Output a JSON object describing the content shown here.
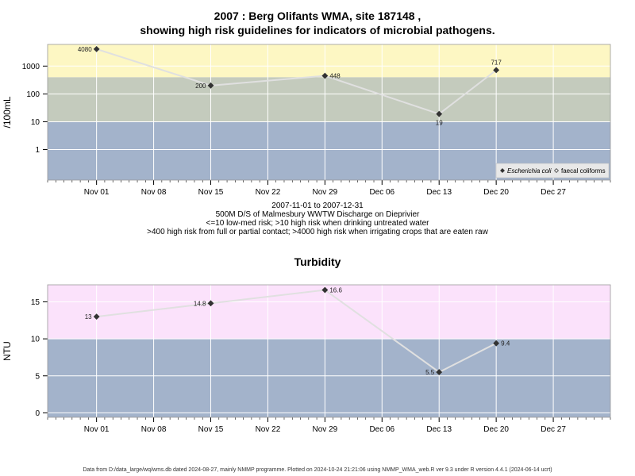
{
  "title_line1": "2007 : Berg Olifants WMA, site 187148 ,",
  "title_line2": "showing high risk guidelines for indicators of microbial pathogens.",
  "captions": {
    "line1": "2007-11-01 to 2007-12-31",
    "line2": "500M D/S of Malmesbury WWTW Discharge on Dieprivier",
    "line3": "<=10 low-med risk; >10 high risk when drinking untreated water",
    "line4": ">400 high risk from full or partial contact; >4000 high risk when irrigating crops that are eaten raw"
  },
  "turbidity_title": "Turbidity",
  "footer": "Data from D:/data_large/wq/wms.db dated 2024-08-27, mainly NMMP programme. Plotted on 2024-10-24 21:21:06 using NMMP_WMA_web.R ver 9.3 under R version 4.4.1 (2024-06-14 ucrt)",
  "colors": {
    "band_low": "#a3b3cb",
    "band_mid": "#c4cbbd",
    "band_high": "#fdf7c3",
    "band_turb_high": "#fbe2fb",
    "grid": "#ffffff",
    "line": "#e0e0e0",
    "marker": "#333333"
  },
  "chart_data": [
    {
      "type": "line",
      "title": "",
      "xlabel": "",
      "ylabel": "/100mL",
      "yscale": "log",
      "ylim": [
        0.08,
        6000
      ],
      "xlim": [
        "2007-10-26",
        "2008-01-03"
      ],
      "x_ticks": [
        "Nov 01",
        "Nov 08",
        "Nov 15",
        "Nov 22",
        "Nov 29",
        "Dec 06",
        "Dec 13",
        "Dec 20",
        "Dec 27"
      ],
      "x_tick_dates": [
        "2007-11-01",
        "2007-11-08",
        "2007-11-15",
        "2007-11-22",
        "2007-11-29",
        "2007-12-06",
        "2007-12-13",
        "2007-12-20",
        "2007-12-27"
      ],
      "y_ticks": [
        "1",
        "10",
        "100",
        "1000"
      ],
      "y_tick_values": [
        1,
        10,
        100,
        1000
      ],
      "grid": true,
      "bands": [
        {
          "from": 0.08,
          "to": 10,
          "color": "band_low"
        },
        {
          "from": 10,
          "to": 400,
          "color": "band_mid"
        },
        {
          "from": 400,
          "to": 6000,
          "color": "band_high"
        }
      ],
      "legend": {
        "position": "bottom-right",
        "entries": [
          "Escherichia coli",
          "faecal coliforms"
        ]
      },
      "series": [
        {
          "name": "Escherichia coli",
          "x": [
            "2007-11-01",
            "2007-11-15",
            "2007-11-29",
            "2007-12-13",
            "2007-12-20"
          ],
          "values": [
            4080,
            200,
            448,
            19,
            717
          ],
          "labels": [
            "4080",
            "200",
            "448",
            "19",
            "717"
          ],
          "label_pos": [
            "left",
            "left",
            "right",
            "below",
            "above"
          ]
        }
      ]
    },
    {
      "type": "line",
      "title": "Turbidity",
      "xlabel": "",
      "ylabel": "NTU",
      "yscale": "linear",
      "ylim": [
        -0.6,
        17.3
      ],
      "xlim": [
        "2007-10-26",
        "2008-01-03"
      ],
      "x_ticks": [
        "Nov 01",
        "Nov 08",
        "Nov 15",
        "Nov 22",
        "Nov 29",
        "Dec 06",
        "Dec 13",
        "Dec 20",
        "Dec 27"
      ],
      "x_tick_dates": [
        "2007-11-01",
        "2007-11-08",
        "2007-11-15",
        "2007-11-22",
        "2007-11-29",
        "2007-12-06",
        "2007-12-13",
        "2007-12-20",
        "2007-12-27"
      ],
      "y_ticks": [
        "0",
        "5",
        "10",
        "15"
      ],
      "y_tick_values": [
        0,
        5,
        10,
        15
      ],
      "grid": true,
      "bands": [
        {
          "from": -0.6,
          "to": 10,
          "color": "band_low"
        },
        {
          "from": 10,
          "to": 17.3,
          "color": "band_turb_high"
        }
      ],
      "series": [
        {
          "x": [
            "2007-11-01",
            "2007-11-15",
            "2007-11-29",
            "2007-12-13",
            "2007-12-20"
          ],
          "values": [
            13,
            14.8,
            16.6,
            5.5,
            9.4
          ],
          "labels": [
            "13",
            "14.8",
            "16.6",
            "5.5",
            "9.4"
          ],
          "label_pos": [
            "left",
            "left",
            "right",
            "left",
            "right"
          ]
        }
      ]
    }
  ]
}
